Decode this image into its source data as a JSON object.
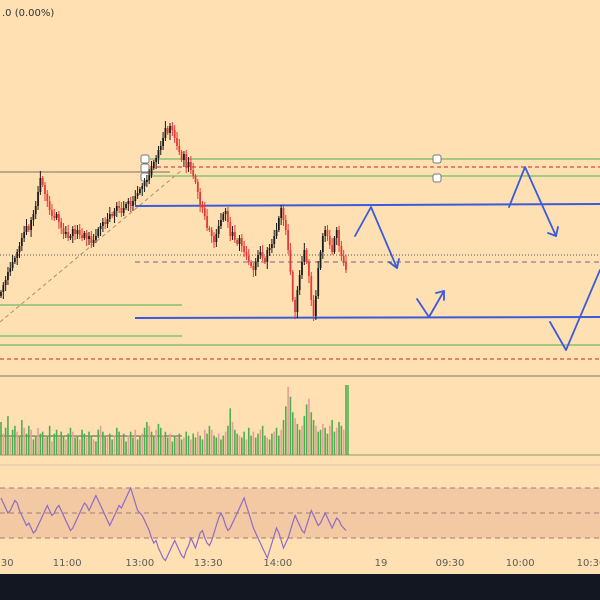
{
  "legend": {
    "value_text": ".0 (0.00%)"
  },
  "theme": {
    "background": "#ffe0b2",
    "candle_up": "#1a1a1a",
    "candle_down": "#e53935",
    "volume_up": "#4caf50",
    "volume_down": "#ef9a9a",
    "drawing_blue": "#3b5bdb",
    "level_green": "#4caf50",
    "level_red_dashed": "#c62828",
    "rsi_line": "#8e6bc7",
    "rsi_band_fill": "#f2c9a3",
    "bottom_bar": "#131722"
  },
  "chart_data": [
    {
      "type": "candlestick",
      "panel": "price",
      "title": "",
      "up_color": "#1a1a1a",
      "down_color": "#e53935",
      "closes": [
        292,
        285,
        280,
        272,
        268,
        262,
        258,
        252,
        246,
        238,
        232,
        226,
        230,
        220,
        214,
        206,
        192,
        178,
        185,
        194,
        201,
        210,
        216,
        218,
        214,
        222,
        228,
        234,
        232,
        238,
        236,
        229,
        234,
        230,
        235,
        238,
        233,
        239,
        236,
        243,
        240,
        236,
        229,
        226,
        222,
        224,
        219,
        214,
        216,
        211,
        206,
        208,
        213,
        208,
        204,
        201,
        206,
        201,
        196,
        193,
        189,
        186,
        182,
        180,
        175,
        168,
        162,
        158,
        150,
        146,
        138,
        128,
        133,
        126,
        130,
        138,
        146,
        152,
        160,
        154,
        167,
        162,
        170,
        176,
        182,
        192,
        206,
        208,
        216,
        228,
        230,
        236,
        242,
        234,
        226,
        220,
        214,
        211,
        222,
        236,
        232,
        240,
        244,
        238,
        246,
        252,
        256,
        262,
        266,
        270,
        262,
        255,
        252,
        258,
        262,
        250,
        248,
        244,
        236,
        230,
        218,
        208,
        220,
        230,
        250,
        272,
        300,
        312,
        290,
        275,
        262,
        250,
        262,
        276,
        300,
        316,
        296,
        268,
        252,
        236,
        230,
        236,
        245,
        252,
        238,
        230,
        246,
        256,
        262,
        270
      ]
    },
    {
      "type": "bar",
      "panel": "volume",
      "title": "",
      "values": [
        34,
        22,
        28,
        40,
        18,
        26,
        30,
        24,
        20,
        36,
        28,
        22,
        30,
        26,
        16,
        20,
        28,
        22,
        24,
        18,
        20,
        30,
        14,
        22,
        26,
        18,
        24,
        20,
        16,
        22,
        28,
        24,
        18,
        20,
        16,
        26,
        22,
        18,
        24,
        20,
        16,
        14,
        26,
        30,
        24,
        20,
        18,
        22,
        16,
        20,
        28,
        24,
        18,
        22,
        14,
        20,
        24,
        18,
        26,
        16,
        20,
        22,
        28,
        34,
        30,
        24,
        20,
        26,
        32,
        28,
        20,
        24,
        18,
        22,
        14,
        20,
        18,
        22,
        16,
        18,
        24,
        20,
        16,
        22,
        18,
        24,
        20,
        16,
        26,
        22,
        30,
        26,
        20,
        18,
        22,
        16,
        20,
        24,
        30,
        48,
        34,
        26,
        22,
        20,
        18,
        24,
        16,
        28,
        20,
        24,
        18,
        22,
        26,
        30,
        20,
        18,
        16,
        22,
        24,
        28,
        20,
        26,
        36,
        50,
        70,
        60,
        44,
        38,
        32,
        26,
        30,
        40,
        52,
        58,
        44,
        36,
        30,
        24,
        26,
        32,
        28,
        22,
        30,
        36,
        24,
        28,
        34,
        30,
        26,
        72
      ],
      "ma_level": 18
    },
    {
      "type": "line",
      "panel": "rsi",
      "title": "",
      "values": [
        62,
        58,
        54,
        50,
        52,
        56,
        60,
        58,
        52,
        48,
        44,
        40,
        42,
        38,
        34,
        36,
        40,
        44,
        48,
        52,
        56,
        52,
        48,
        50,
        54,
        56,
        52,
        48,
        44,
        40,
        36,
        38,
        42,
        46,
        50,
        54,
        58,
        56,
        52,
        56,
        60,
        64,
        60,
        56,
        52,
        48,
        44,
        40,
        44,
        48,
        52,
        56,
        54,
        58,
        62,
        66,
        70,
        64,
        58,
        52,
        50,
        48,
        44,
        40,
        36,
        30,
        26,
        28,
        22,
        18,
        14,
        12,
        16,
        20,
        24,
        28,
        24,
        20,
        16,
        14,
        20,
        24,
        30,
        26,
        22,
        28,
        34,
        36,
        30,
        26,
        24,
        28,
        34,
        40,
        46,
        50,
        46,
        40,
        36,
        38,
        42,
        46,
        50,
        54,
        58,
        62,
        56,
        50,
        44,
        38,
        34,
        30,
        26,
        22,
        18,
        14,
        20,
        26,
        32,
        38,
        34,
        28,
        22,
        26,
        30,
        36,
        42,
        48,
        44,
        40,
        36,
        34,
        40,
        46,
        52,
        48,
        44,
        40,
        42,
        46,
        50,
        46,
        42,
        38,
        42,
        46,
        44,
        40,
        38,
        36
      ],
      "upper_band": 70,
      "middle": 50,
      "lower_band": 30,
      "range": [
        0,
        100
      ]
    }
  ],
  "x_axis": {
    "ticks": [
      {
        "label": "30",
        "x": 0.012
      },
      {
        "label": "11:00",
        "x": 0.112
      },
      {
        "label": "13:00",
        "x": 0.233
      },
      {
        "label": "13:30",
        "x": 0.347
      },
      {
        "label": "14:00",
        "x": 0.463
      },
      {
        "label": "19",
        "x": 0.635
      },
      {
        "label": "09:30",
        "x": 0.75
      },
      {
        "label": "10:00",
        "x": 0.867
      },
      {
        "label": "10:30",
        "x": 0.985
      }
    ]
  }
}
